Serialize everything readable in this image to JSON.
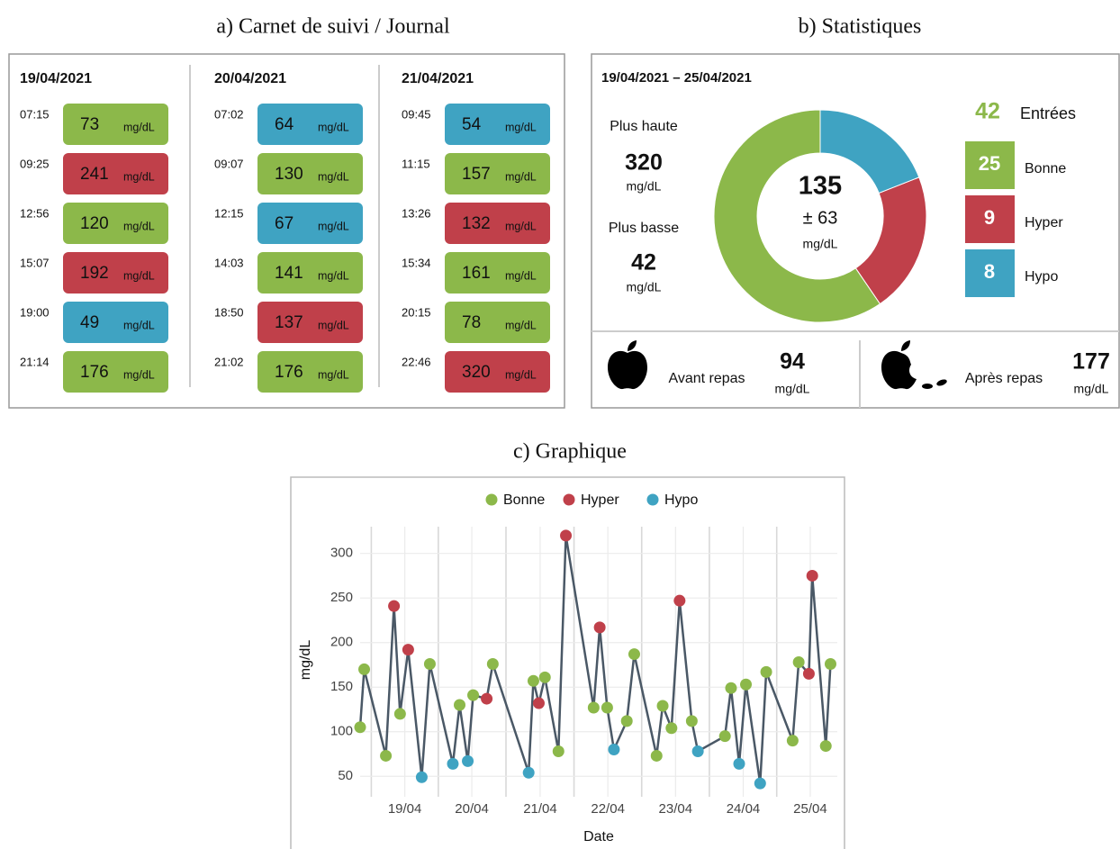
{
  "journal": {
    "title": "a) Carnet de suivi / Journal",
    "unit": "mg/dL",
    "days": [
      {
        "date": "19/04/2021",
        "entries": [
          {
            "time": "07:15",
            "value": 73,
            "status": "Bonne"
          },
          {
            "time": "09:25",
            "value": 241,
            "status": "Hyper"
          },
          {
            "time": "12:56",
            "value": 120,
            "status": "Bonne"
          },
          {
            "time": "15:07",
            "value": 192,
            "status": "Hyper"
          },
          {
            "time": "19:00",
            "value": 49,
            "status": "Hypo"
          },
          {
            "time": "21:14",
            "value": 176,
            "status": "Bonne"
          }
        ]
      },
      {
        "date": "20/04/2021",
        "entries": [
          {
            "time": "07:02",
            "value": 64,
            "status": "Hypo"
          },
          {
            "time": "09:07",
            "value": 130,
            "status": "Bonne"
          },
          {
            "time": "12:15",
            "value": 67,
            "status": "Hypo"
          },
          {
            "time": "14:03",
            "value": 141,
            "status": "Bonne"
          },
          {
            "time": "18:50",
            "value": 137,
            "status": "Hyper"
          },
          {
            "time": "21:02",
            "value": 176,
            "status": "Bonne"
          }
        ]
      },
      {
        "date": "21/04/2021",
        "entries": [
          {
            "time": "09:45",
            "value": 54,
            "status": "Hypo"
          },
          {
            "time": "11:15",
            "value": 157,
            "status": "Bonne"
          },
          {
            "time": "13:26",
            "value": 132,
            "status": "Hyper"
          },
          {
            "time": "15:34",
            "value": 161,
            "status": "Bonne"
          },
          {
            "time": "20:15",
            "value": 78,
            "status": "Bonne"
          },
          {
            "time": "22:46",
            "value": 320,
            "status": "Hyper"
          }
        ]
      }
    ]
  },
  "stats": {
    "title": "b) Statistiques",
    "period": "19/04/2021 – 25/04/2021",
    "unit": "mg/dL",
    "highest_label": "Plus haute",
    "highest": 320,
    "lowest_label": "Plus basse",
    "lowest": 42,
    "mean": 135,
    "sd": 63,
    "sd_label": "± 63",
    "entries": 42,
    "entries_label": "Entrées",
    "breakdown": [
      {
        "label": "Bonne",
        "count": 25
      },
      {
        "label": "Hyper",
        "count": 9
      },
      {
        "label": "Hypo",
        "count": 8
      }
    ],
    "before_meal_label": "Avant repas",
    "before_meal": 94,
    "after_meal_label": "Après repas",
    "after_meal": 177
  },
  "chart_data": {
    "type": "line",
    "title": "c) Graphique",
    "xlabel": "Date",
    "ylabel": "mg/dL",
    "series": [
      {
        "name": "Bonne",
        "color": "#8cb84a"
      },
      {
        "name": "Hyper",
        "color": "#c0404a"
      },
      {
        "name": "Hypo",
        "color": "#3fa3c2"
      }
    ],
    "line_color": "#4a5866",
    "x": [
      18.93,
      18.99,
      19.31,
      19.43,
      19.52,
      19.64,
      19.84,
      19.96,
      20.3,
      20.4,
      20.52,
      20.6,
      20.8,
      20.89,
      21.42,
      21.49,
      21.57,
      21.66,
      21.86,
      21.97,
      22.38,
      22.47,
      22.58,
      22.68,
      22.87,
      22.98,
      23.31,
      23.4,
      23.53,
      23.65,
      23.83,
      23.92,
      24.32,
      24.41,
      24.53,
      24.63,
      24.84,
      24.93,
      25.32,
      25.41,
      25.56,
      25.61,
      25.81,
      25.88
    ],
    "values": [
      105,
      170,
      73,
      241,
      120,
      192,
      49,
      176,
      64,
      130,
      67,
      141,
      137,
      176,
      54,
      157,
      132,
      161,
      78,
      320,
      127,
      217,
      127,
      80,
      112,
      187,
      73,
      129,
      104,
      247,
      112,
      78,
      95,
      149,
      64,
      153,
      42,
      167,
      90,
      178,
      165,
      275,
      84,
      176
    ],
    "status": [
      "Bonne",
      "Bonne",
      "Bonne",
      "Hyper",
      "Bonne",
      "Hyper",
      "Hypo",
      "Bonne",
      "Hypo",
      "Bonne",
      "Hypo",
      "Bonne",
      "Hyper",
      "Bonne",
      "Hypo",
      "Bonne",
      "Hyper",
      "Bonne",
      "Bonne",
      "Hyper",
      "Bonne",
      "Hyper",
      "Bonne",
      "Hypo",
      "Bonne",
      "Bonne",
      "Bonne",
      "Bonne",
      "Bonne",
      "Hyper",
      "Bonne",
      "Hypo",
      "Bonne",
      "Bonne",
      "Hypo",
      "Bonne",
      "Hypo",
      "Bonne",
      "Bonne",
      "Bonne",
      "Hyper",
      "Hyper",
      "Bonne",
      "Bonne"
    ],
    "xlim": [
      18.93,
      25.98
    ],
    "xticks": [
      {
        "value": 19.59,
        "label": "19/04"
      },
      {
        "value": 20.58,
        "label": "20/04"
      },
      {
        "value": 21.59,
        "label": "21/04"
      },
      {
        "value": 22.59,
        "label": "22/04"
      },
      {
        "value": 23.59,
        "label": "23/04"
      },
      {
        "value": 24.59,
        "label": "24/04"
      },
      {
        "value": 25.58,
        "label": "25/04"
      }
    ],
    "ylim": [
      27,
      330
    ],
    "yticks": [
      50,
      100,
      150,
      200,
      250,
      300
    ],
    "grid": true,
    "legend": "top"
  }
}
